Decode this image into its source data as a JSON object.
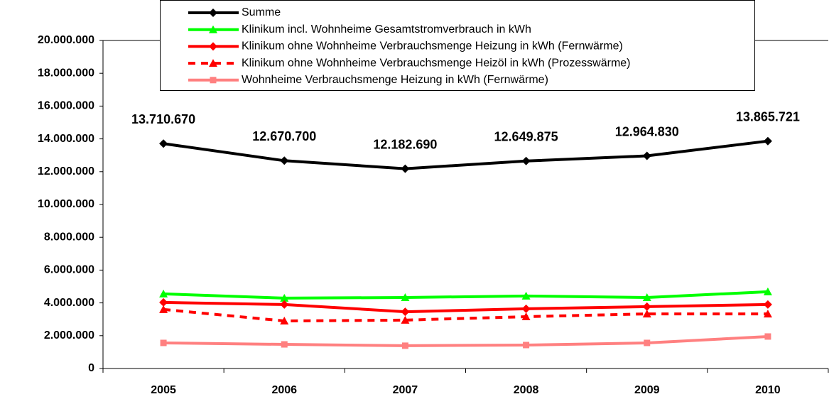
{
  "chart_data": {
    "type": "line",
    "categories": [
      "2005",
      "2006",
      "2007",
      "2008",
      "2009",
      "2010"
    ],
    "series": [
      {
        "name": "Summe",
        "color": "#000000",
        "marker": "diamond",
        "dash": false,
        "values": [
          13710670,
          12670700,
          12182690,
          12649875,
          12964830,
          13865721
        ],
        "value_labels": [
          "13.710.670",
          "12.670.700",
          "12.182.690",
          "12.649.875",
          "12.964.830",
          "13.865.721"
        ]
      },
      {
        "name": "Klinikum incl.  Wohnheime Gesamtstromverbrauch in kWh",
        "color": "#00ff00",
        "marker": "triangle",
        "dash": false,
        "values": [
          4550000,
          4290000,
          4330000,
          4420000,
          4330000,
          4680000
        ]
      },
      {
        "name": "Klinikum ohne Wohnheime Verbrauchsmenge Heizung  in kWh (Fernwärme)",
        "color": "#ff0000",
        "marker": "diamond",
        "dash": false,
        "values": [
          4030000,
          3900000,
          3460000,
          3640000,
          3770000,
          3900000
        ]
      },
      {
        "name": "Klinikum ohne Wohnheime Verbrauchsmenge Heizöl in kWh (Prozesswärme)",
        "color": "#ff0000",
        "marker": "triangle",
        "dash": true,
        "values": [
          3600000,
          2900000,
          2950000,
          3160000,
          3330000,
          3330000
        ]
      },
      {
        "name": "Wohnheime Verbrauchsmenge Heizung  in kWh (Fernwärme)",
        "color": "#ff8080",
        "marker": "square",
        "dash": false,
        "values": [
          1560000,
          1470000,
          1390000,
          1430000,
          1560000,
          1950000
        ]
      }
    ],
    "ylim": [
      0,
      20000000
    ],
    "yticks": [
      0,
      {
        "value": 2000000,
        "label": "2.000.000"
      },
      {
        "value": 4000000,
        "label": "4.000.000"
      },
      {
        "value": 6000000,
        "label": "6.000.000"
      },
      {
        "value": 8000000,
        "label": "8.000.000"
      },
      {
        "value": 10000000,
        "label": "10.000.000"
      },
      {
        "value": 12000000,
        "label": "12.000.000"
      },
      {
        "value": 14000000,
        "label": "14.000.000"
      },
      {
        "value": 16000000,
        "label": "16.000.000"
      },
      {
        "value": 18000000,
        "label": "18.000.000"
      },
      {
        "value": 20000000,
        "label": "20.000.000"
      }
    ],
    "grid": false,
    "legend": "top"
  }
}
